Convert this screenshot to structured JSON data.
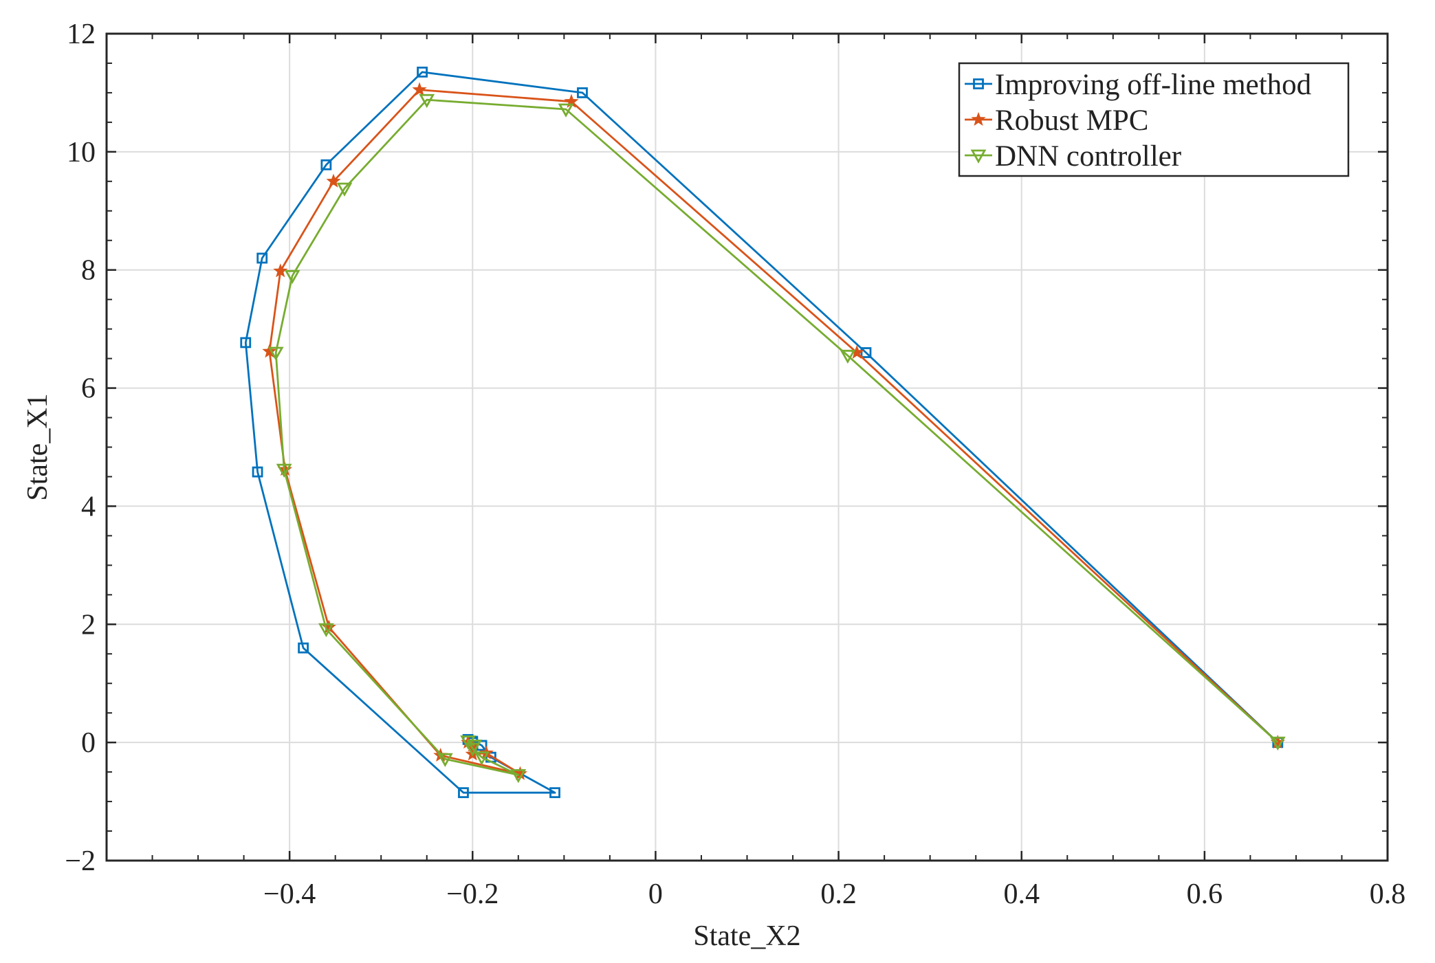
{
  "chart_data": {
    "type": "line",
    "title": "",
    "xlabel": "State_X2",
    "ylabel": "State_X1",
    "xlim": [
      -0.6,
      0.8
    ],
    "ylim": [
      -2,
      12
    ],
    "x_ticks": [
      -0.4,
      -0.2,
      0,
      0.2,
      0.4,
      0.6,
      0.8
    ],
    "x_tick_labels": [
      "−0.4",
      "−0.2",
      "0",
      "0.2",
      "0.4",
      "0.6",
      "0.8"
    ],
    "y_ticks": [
      -2,
      0,
      2,
      4,
      6,
      8,
      10,
      12
    ],
    "y_tick_labels": [
      "−2",
      "0",
      "2",
      "4",
      "6",
      "8",
      "10",
      "12"
    ],
    "grid": true,
    "legend_position": "top-right",
    "series": [
      {
        "name": "Improving off-line method",
        "color": "#0072BD",
        "marker": "square",
        "x": [
          0.68,
          0.23,
          -0.08,
          -0.255,
          -0.36,
          -0.43,
          -0.448,
          -0.435,
          -0.385,
          -0.21,
          -0.11,
          -0.18,
          -0.19,
          -0.2,
          -0.205,
          -0.2
        ],
        "y": [
          0.0,
          6.6,
          11.0,
          11.35,
          9.78,
          8.2,
          6.77,
          4.58,
          1.6,
          -0.85,
          -0.85,
          -0.25,
          -0.05,
          0.02,
          0.05,
          0.0
        ]
      },
      {
        "name": "Robust MPC",
        "color": "#D95319",
        "marker": "star",
        "x": [
          0.68,
          0.22,
          -0.092,
          -0.258,
          -0.352,
          -0.41,
          -0.422,
          -0.405,
          -0.357,
          -0.235,
          -0.148,
          -0.185,
          -0.2,
          -0.205,
          -0.2
        ],
        "y": [
          0.0,
          6.6,
          10.85,
          11.05,
          9.5,
          7.98,
          6.62,
          4.62,
          1.95,
          -0.22,
          -0.53,
          -0.18,
          -0.2,
          0.0,
          -0.05
        ]
      },
      {
        "name": "DNN controller",
        "color": "#77AC30",
        "marker": "triangle-down",
        "x": [
          0.68,
          0.21,
          -0.098,
          -0.25,
          -0.34,
          -0.397,
          -0.415,
          -0.406,
          -0.36,
          -0.23,
          -0.15,
          -0.19,
          -0.2,
          -0.205,
          -0.198
        ],
        "y": [
          0.0,
          6.55,
          10.72,
          10.88,
          9.38,
          7.9,
          6.6,
          4.62,
          1.92,
          -0.28,
          -0.55,
          -0.25,
          -0.1,
          0.02,
          -0.05
        ]
      }
    ]
  }
}
